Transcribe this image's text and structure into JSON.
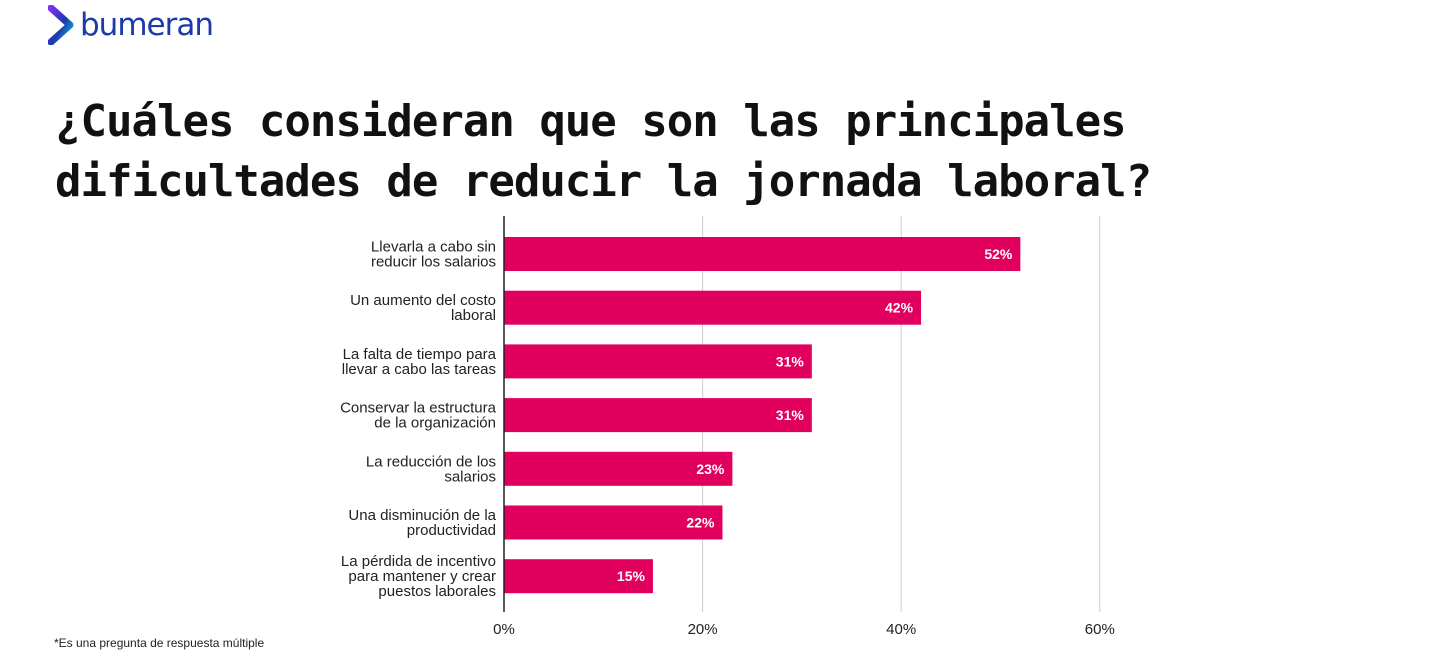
{
  "brand": {
    "name": "bumeran",
    "color": "#1c3aa9",
    "icon": "bumeran-chevron-icon"
  },
  "title": "¿Cuáles consideran que son las principales dificultades de reducir la jornada laboral?",
  "footnote": "*Es una pregunta de respuesta múltiple",
  "colors": {
    "bar": "#e2005f",
    "grid": "#cccccc",
    "axis": "#222222",
    "label": "#222222"
  },
  "chart_data": {
    "type": "bar",
    "orientation": "horizontal",
    "categories": [
      [
        "Llevarla a cabo sin",
        "reducir los salarios"
      ],
      [
        "Un aumento del costo",
        "laboral"
      ],
      [
        "La falta de tiempo para",
        "llevar a cabo las tareas"
      ],
      [
        "Conservar la estructura",
        "de la organización"
      ],
      [
        "La reducción de los",
        "salarios"
      ],
      [
        "Una disminución de la",
        "productividad"
      ],
      [
        "La pérdida de incentivo",
        "para mantener y crear",
        "puestos laborales"
      ]
    ],
    "values": [
      52,
      42,
      31,
      31,
      23,
      22,
      15
    ],
    "value_labels": [
      "52%",
      "42%",
      "31%",
      "31%",
      "23%",
      "22%",
      "15%"
    ],
    "xlim": [
      0,
      60
    ],
    "xticks": [
      0,
      20,
      40,
      60
    ],
    "xtick_labels": [
      "0%",
      "20%",
      "40%",
      "60%"
    ],
    "grid": true
  }
}
